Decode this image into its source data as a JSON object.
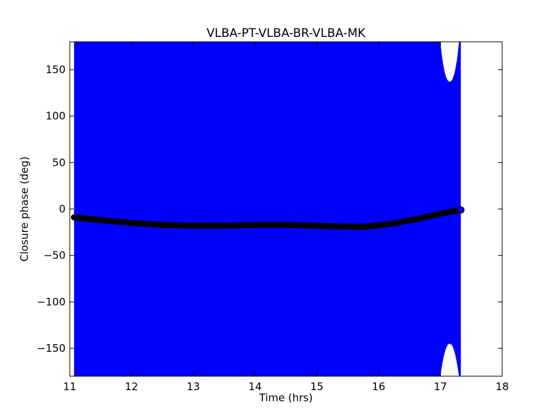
{
  "chart_data": {
    "type": "scatter",
    "title": "VLBA-PT-VLBA-BR-VLBA-MK",
    "xlabel": "Time (hrs)",
    "ylabel": "Closure phase (deg)",
    "xlim": [
      11,
      18
    ],
    "ylim": [
      -180,
      180
    ],
    "xticks": [
      11,
      12,
      13,
      14,
      15,
      16,
      17,
      18
    ],
    "yticks": [
      -150,
      -100,
      -50,
      0,
      50,
      100,
      150
    ],
    "grid": false,
    "colors": {
      "band": "#0000ff",
      "model": "#000000",
      "background": "#ffffff"
    },
    "series": [
      {
        "style": "band",
        "x": [
          11.07,
          17.33
        ],
        "y": [
          -180,
          180
        ],
        "gaps": [
          {
            "edge": "top",
            "x": [
              17.0,
              17.3
            ],
            "y_min": 137
          },
          {
            "edge": "bottom",
            "x": [
              17.0,
              17.3
            ],
            "y_max": -145
          }
        ]
      },
      {
        "style": "points",
        "x": [
          11.07,
          11.5,
          12.0,
          12.5,
          13.0,
          13.5,
          14.0,
          14.5,
          15.0,
          15.5,
          15.8,
          16.2,
          16.6,
          17.0,
          17.33
        ],
        "y": [
          -9,
          -12,
          -15,
          -17,
          -18,
          -18,
          -17,
          -17,
          -18,
          -19,
          -19,
          -16,
          -11,
          -5,
          -1
        ]
      }
    ]
  }
}
